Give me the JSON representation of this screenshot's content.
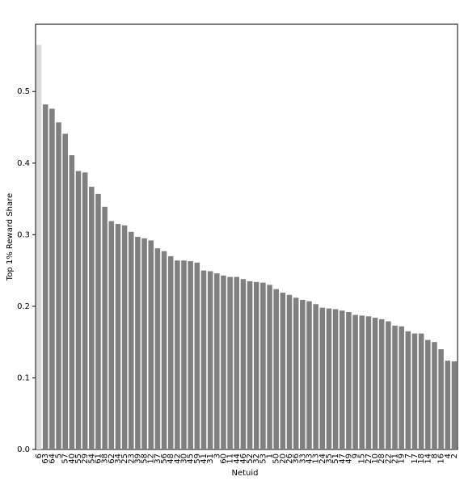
{
  "chart_data": {
    "type": "bar",
    "x_label": "Netuid",
    "y_label": "Top 1% Reward Share",
    "categories": [
      "6",
      "63",
      "64",
      "5",
      "57",
      "40",
      "55",
      "29",
      "54",
      "61",
      "38",
      "62",
      "34",
      "25",
      "23",
      "39",
      "58",
      "12",
      "37",
      "56",
      "48",
      "42",
      "30",
      "45",
      "59",
      "41",
      "31",
      "3",
      "60",
      "11",
      "44",
      "46",
      "52",
      "32",
      "53",
      "1",
      "50",
      "20",
      "26",
      "36",
      "33",
      "43",
      "13",
      "24",
      "35",
      "51",
      "47",
      "49",
      "9",
      "15",
      "27",
      "10",
      "28",
      "22",
      "21",
      "19",
      "7",
      "17",
      "18",
      "14",
      "8",
      "16",
      "4",
      "2"
    ],
    "values": [
      0.565,
      0.482,
      0.476,
      0.457,
      0.441,
      0.411,
      0.389,
      0.387,
      0.367,
      0.357,
      0.339,
      0.319,
      0.315,
      0.313,
      0.304,
      0.297,
      0.295,
      0.292,
      0.281,
      0.277,
      0.27,
      0.264,
      0.264,
      0.263,
      0.261,
      0.25,
      0.249,
      0.246,
      0.243,
      0.241,
      0.241,
      0.238,
      0.235,
      0.234,
      0.233,
      0.23,
      0.224,
      0.219,
      0.216,
      0.212,
      0.209,
      0.207,
      0.203,
      0.198,
      0.197,
      0.196,
      0.194,
      0.192,
      0.188,
      0.187,
      0.186,
      0.184,
      0.182,
      0.179,
      0.173,
      0.172,
      0.165,
      0.162,
      0.162,
      0.153,
      0.15,
      0.14,
      0.124,
      0.123
    ],
    "colors": [
      "#d9d9d9",
      "#808080",
      "#808080",
      "#808080",
      "#808080",
      "#808080",
      "#808080",
      "#808080",
      "#808080",
      "#808080",
      "#808080",
      "#808080",
      "#808080",
      "#808080",
      "#808080",
      "#808080",
      "#808080",
      "#808080",
      "#808080",
      "#808080",
      "#808080",
      "#808080",
      "#808080",
      "#808080",
      "#808080",
      "#808080",
      "#808080",
      "#808080",
      "#808080",
      "#808080",
      "#808080",
      "#808080",
      "#808080",
      "#808080",
      "#808080",
      "#808080",
      "#808080",
      "#808080",
      "#808080",
      "#808080",
      "#808080",
      "#808080",
      "#808080",
      "#808080",
      "#808080",
      "#808080",
      "#808080",
      "#808080",
      "#808080",
      "#808080",
      "#808080",
      "#808080",
      "#808080",
      "#808080",
      "#808080",
      "#808080",
      "#808080",
      "#808080",
      "#808080",
      "#808080",
      "#808080",
      "#808080",
      "#808080",
      "#808080"
    ],
    "ylim": [
      0,
      0.594
    ],
    "yticks": [
      {
        "value": 0,
        "label": "0.0"
      },
      0.1,
      0.2,
      0.3,
      0.4,
      0.5
    ],
    "grid": false
  }
}
